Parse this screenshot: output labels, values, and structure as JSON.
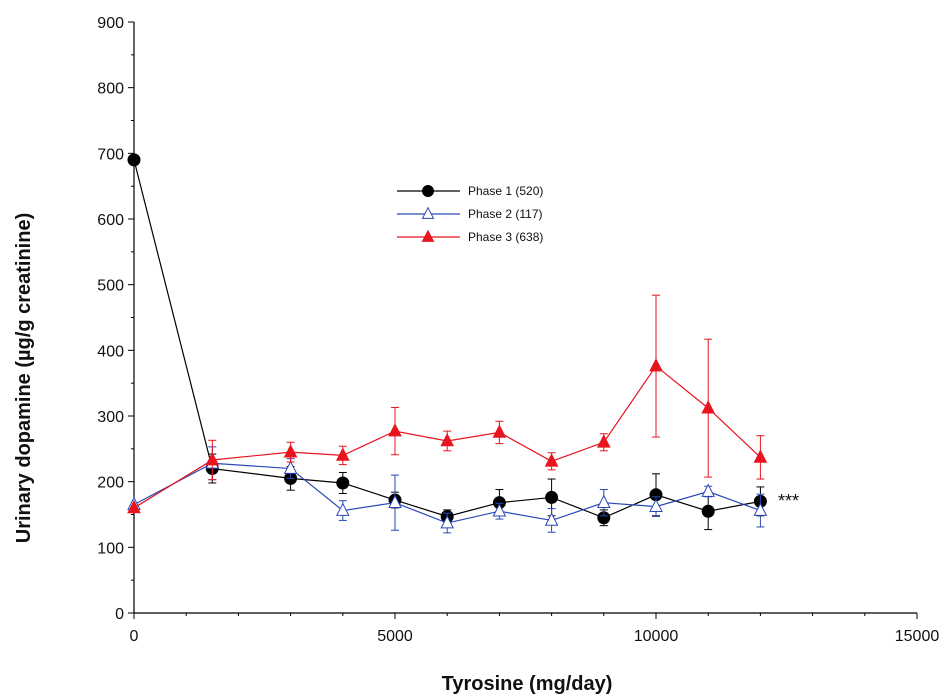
{
  "chart_data": {
    "type": "line",
    "title": "",
    "xlabel": "Tyrosine (mg/day)",
    "ylabel": "Urinary dopamine (µg/g creatinine)",
    "xlim": [
      0,
      15000
    ],
    "ylim": [
      0,
      900
    ],
    "xticks": [
      0,
      5000,
      10000,
      15000
    ],
    "xtick_labels": [
      "0",
      "5000",
      "10000",
      "15000"
    ],
    "yticks": [
      0,
      100,
      200,
      300,
      400,
      500,
      600,
      700,
      800,
      900
    ],
    "ytick_labels": [
      "0",
      "100",
      "200",
      "300",
      "400",
      "500",
      "600",
      "700",
      "800",
      "900"
    ],
    "grid": false,
    "legend_position": "upper-center",
    "annotation": "***",
    "series": [
      {
        "name": "Phase 1 (520)",
        "color": "#000000",
        "marker": "circle-filled",
        "x": [
          0,
          1500,
          3000,
          4000,
          5000,
          6000,
          7000,
          8000,
          9000,
          10000,
          11000,
          12000
        ],
        "y": [
          690,
          220,
          205,
          198,
          172,
          147,
          168,
          176,
          145,
          180,
          155,
          170
        ],
        "err": [
          0,
          22,
          18,
          16,
          12,
          10,
          20,
          28,
          12,
          32,
          28,
          22
        ]
      },
      {
        "name": "Phase 2 (117)",
        "color": "#2a47b8",
        "marker": "triangle-open",
        "x": [
          0,
          1500,
          3000,
          4000,
          5000,
          6000,
          7000,
          8000,
          9000,
          10000,
          11000,
          12000
        ],
        "y": [
          165,
          228,
          220,
          156,
          168,
          137,
          155,
          141,
          168,
          162,
          185,
          156
        ],
        "err": [
          0,
          25,
          15,
          15,
          42,
          15,
          12,
          18,
          20,
          15,
          8,
          25
        ]
      },
      {
        "name": "Phase 3 (638)",
        "color": "#e8141e",
        "marker": "triangle-filled",
        "x": [
          0,
          1500,
          3000,
          4000,
          5000,
          6000,
          7000,
          8000,
          9000,
          10000,
          11000,
          12000
        ],
        "y": [
          160,
          233,
          245,
          240,
          277,
          262,
          275,
          231,
          260,
          376,
          312,
          237
        ],
        "err": [
          0,
          30,
          15,
          14,
          36,
          15,
          17,
          13,
          13,
          108,
          105,
          33
        ]
      }
    ]
  }
}
